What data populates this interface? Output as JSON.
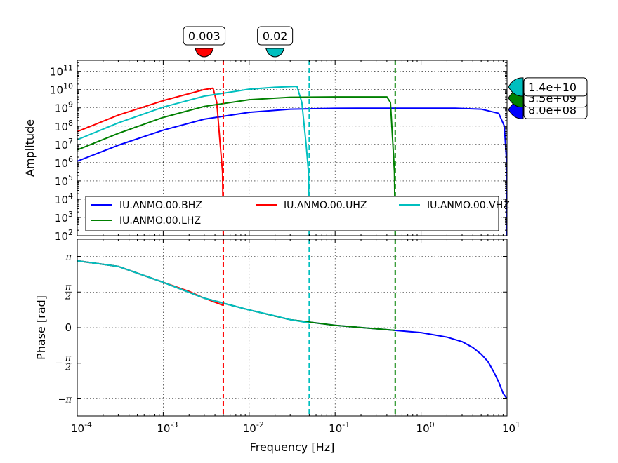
{
  "chart_data": [
    {
      "type": "line",
      "panel": "amplitude",
      "xscale": "log",
      "yscale": "log",
      "xlim": [
        0.0001,
        10
      ],
      "ylim": [
        100,
        400000000000
      ],
      "ylabel": "Amplitude",
      "grid": true,
      "x_ticks": [
        0.0001,
        0.001,
        0.01,
        0.1,
        1,
        10
      ],
      "y_ticks": [
        {
          "value": 100,
          "label": "10",
          "exp": "2"
        },
        {
          "value": 1000,
          "label": "10",
          "exp": "3"
        },
        {
          "value": 10000,
          "label": "10",
          "exp": "4"
        },
        {
          "value": 100000,
          "label": "10",
          "exp": "5"
        },
        {
          "value": 1000000,
          "label": "10",
          "exp": "6"
        },
        {
          "value": 10000000,
          "label": "10",
          "exp": "7"
        },
        {
          "value": 100000000,
          "label": "10",
          "exp": "8"
        },
        {
          "value": 1000000000,
          "label": "10",
          "exp": "9"
        },
        {
          "value": 10000000000,
          "label": "10",
          "exp": "10"
        },
        {
          "value": 100000000000,
          "label": "10",
          "exp": "11"
        }
      ],
      "legend": {
        "placement": "lower-center",
        "entries": [
          {
            "label": "IU.ANMO.00.BHZ",
            "color": "#0000ff"
          },
          {
            "label": "IU.ANMO.00.UHZ",
            "color": "#ff0000"
          },
          {
            "label": "IU.ANMO.00.VHZ",
            "color": "#00bfbf"
          },
          {
            "label": "IU.ANMO.00.LHZ",
            "color": "#008000"
          }
        ]
      },
      "series": [
        {
          "name": "IU.ANMO.00.BHZ",
          "color": "#0000ff",
          "x": [
            0.0001,
            0.0003,
            0.001,
            0.003,
            0.01,
            0.03,
            0.1,
            0.3,
            1,
            2.5,
            5,
            8,
            9.3,
            9.8,
            10
          ],
          "y": [
            1200000,
            9000000,
            60000000,
            240000000,
            570000000,
            850000000,
            950000000,
            960000000,
            960000000,
            960000000,
            850000000,
            500000000,
            100000000,
            2000000,
            100
          ]
        },
        {
          "name": "IU.ANMO.00.UHZ",
          "color": "#ff0000",
          "x": [
            0.0001,
            0.0003,
            0.001,
            0.002,
            0.003,
            0.0038,
            0.0042,
            0.0046,
            0.0049,
            0.005
          ],
          "y": [
            50000000,
            400000000,
            2500000000,
            6000000000,
            10000000000,
            12000000000,
            2000000000,
            10000000,
            300000,
            100
          ]
        },
        {
          "name": "IU.ANMO.00.VHZ",
          "color": "#00bfbf",
          "x": [
            0.0001,
            0.0003,
            0.001,
            0.003,
            0.01,
            0.02,
            0.03,
            0.036,
            0.041,
            0.046,
            0.049,
            0.05
          ],
          "y": [
            18000000,
            150000000,
            1100000000,
            4400000000,
            10500000000,
            13500000000,
            14500000000,
            15000000000,
            2000000000,
            10000000,
            300000,
            100
          ]
        },
        {
          "name": "IU.ANMO.00.LHZ",
          "color": "#008000",
          "x": [
            0.0001,
            0.0003,
            0.001,
            0.003,
            0.01,
            0.03,
            0.1,
            0.3,
            0.4,
            0.44,
            0.47,
            0.49,
            0.5
          ],
          "y": [
            5000000,
            40000000,
            300000000,
            1200000000,
            2800000000,
            3800000000,
            4000000000,
            4000000000,
            4000000000,
            2000000000,
            10000000,
            300000,
            100
          ]
        }
      ],
      "reference_lines": [
        {
          "x": 0.005,
          "color": "#ff0000",
          "style": "dashed"
        },
        {
          "x": 0.05,
          "color": "#00bfbf",
          "style": "dashed"
        },
        {
          "x": 0.5,
          "color": "#008000",
          "style": "dashed"
        }
      ],
      "top_markers": [
        {
          "x": 0.003,
          "label": "0.003",
          "color": "#ff0000"
        },
        {
          "x": 0.02,
          "label": "0.02",
          "color": "#00bfbf"
        }
      ],
      "right_markers": [
        {
          "y": 800000000,
          "label": "8.0e+08",
          "color": "#0000ff"
        },
        {
          "y": 3500000000,
          "label": "3.5e+09",
          "color": "#008000"
        },
        {
          "y": 14000000000,
          "label": "1.4e+10",
          "color": "#00bfbf"
        }
      ]
    },
    {
      "type": "line",
      "panel": "phase",
      "xscale": "log",
      "xlim": [
        0.0001,
        10
      ],
      "ylim": [
        -3.9,
        3.9
      ],
      "xlabel": "Frequency [Hz]",
      "ylabel": "Phase [rad]",
      "grid": true,
      "x_ticks": [
        {
          "value": 0.0001,
          "label": "10",
          "exp": "-4"
        },
        {
          "value": 0.001,
          "label": "10",
          "exp": "-3"
        },
        {
          "value": 0.01,
          "label": "10",
          "exp": "-2"
        },
        {
          "value": 0.1,
          "label": "10",
          "exp": "-1"
        },
        {
          "value": 1,
          "label": "10",
          "exp": "0"
        },
        {
          "value": 10,
          "label": "10",
          "exp": "1"
        }
      ],
      "y_ticks": [
        {
          "value": 3.14159,
          "label": "π",
          "kind": "pi"
        },
        {
          "value": 1.5708,
          "num": "π",
          "den": "2",
          "kind": "frac"
        },
        {
          "value": 0,
          "label": "0",
          "kind": "plain"
        },
        {
          "value": -1.5708,
          "num": "π",
          "den": "2",
          "sign": "−",
          "kind": "frac"
        },
        {
          "value": -3.14159,
          "label": "−π",
          "kind": "pi"
        }
      ],
      "series": [
        {
          "name": "IU.ANMO.00.BHZ",
          "color": "#0000ff",
          "x": [
            0.0001,
            0.0003,
            0.001,
            0.003,
            0.01,
            0.03,
            0.1,
            0.3,
            1,
            2,
            3,
            4,
            5,
            6,
            7,
            8,
            9,
            10
          ],
          "y": [
            2.95,
            2.7,
            2.0,
            1.3,
            0.78,
            0.35,
            0.1,
            -0.05,
            -0.22,
            -0.42,
            -0.62,
            -0.88,
            -1.17,
            -1.5,
            -1.95,
            -2.4,
            -2.9,
            -3.14
          ]
        },
        {
          "name": "IU.ANMO.00.LHZ",
          "color": "#008000",
          "x": [
            0.0001,
            0.0003,
            0.001,
            0.003,
            0.01,
            0.03,
            0.1,
            0.3,
            0.5
          ],
          "y": [
            2.95,
            2.7,
            2.0,
            1.3,
            0.78,
            0.35,
            0.1,
            -0.05,
            -0.12
          ]
        },
        {
          "name": "IU.ANMO.00.UHZ",
          "color": "#ff0000",
          "x": [
            0.0001,
            0.0003,
            0.001,
            0.002,
            0.003,
            0.004,
            0.005
          ],
          "y": [
            2.95,
            2.7,
            2.0,
            1.6,
            1.3,
            1.12,
            0.98
          ]
        },
        {
          "name": "IU.ANMO.00.VHZ",
          "color": "#00bfbf",
          "x": [
            0.0001,
            0.0003,
            0.001,
            0.003,
            0.01,
            0.02,
            0.03,
            0.04,
            0.05
          ],
          "y": [
            2.95,
            2.7,
            2.0,
            1.3,
            0.78,
            0.52,
            0.35,
            0.27,
            0.2
          ]
        }
      ],
      "reference_lines": [
        {
          "x": 0.005,
          "color": "#ff0000",
          "style": "dashed"
        },
        {
          "x": 0.05,
          "color": "#00bfbf",
          "style": "dashed"
        },
        {
          "x": 0.5,
          "color": "#008000",
          "style": "dashed"
        }
      ]
    }
  ]
}
